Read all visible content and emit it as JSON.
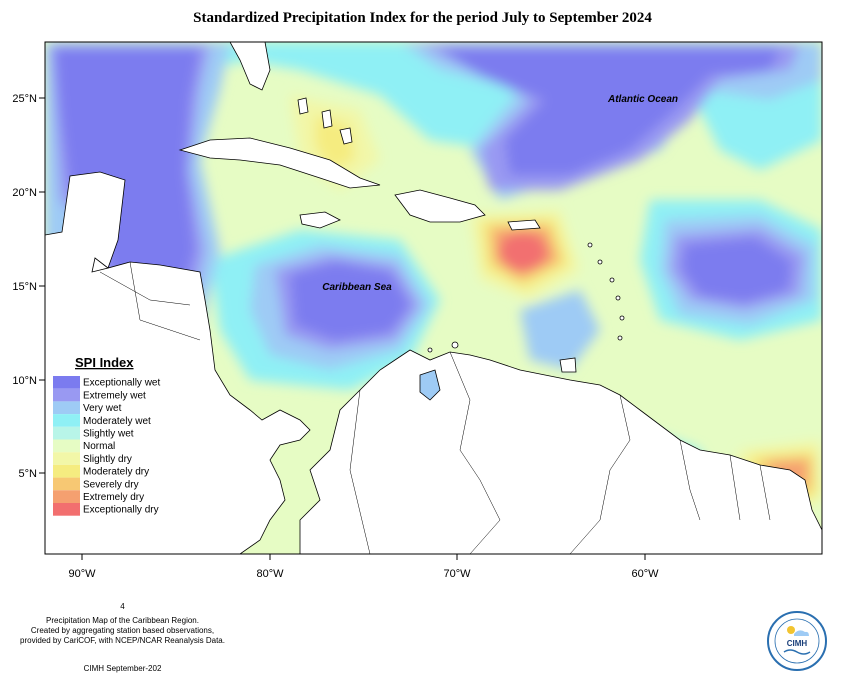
{
  "title": "Standardized Precipitation Index for the period July to September 2024",
  "map": {
    "lon_ticks": [
      "90°W",
      "80°W",
      "70°W",
      "60°W"
    ],
    "lat_ticks": [
      "25°N",
      "20°N",
      "15°N",
      "10°N",
      "5°N"
    ],
    "labels": {
      "atlantic": "Atlantic Ocean",
      "caribbean": "Caribbean Sea"
    }
  },
  "legend": {
    "title": "SPI Index",
    "items": [
      {
        "label": "Exceptionally wet",
        "color": "#7b7bef"
      },
      {
        "label": "Extremely wet",
        "color": "#9999f2"
      },
      {
        "label": "Very wet",
        "color": "#9ecbf5"
      },
      {
        "label": "Moderately wet",
        "color": "#8ff0f5"
      },
      {
        "label": "Slightly wet",
        "color": "#b8f5e8"
      },
      {
        "label": "Normal",
        "color": "#e6fcc4"
      },
      {
        "label": "Slightly dry",
        "color": "#f2f7a8"
      },
      {
        "label": "Moderately dry",
        "color": "#f5ec80"
      },
      {
        "label": "Severely dry",
        "color": "#f7c873"
      },
      {
        "label": "Extremely dry",
        "color": "#f5a070"
      },
      {
        "label": "Exceptionally dry",
        "color": "#f26f6f"
      }
    ]
  },
  "footer": {
    "page_marker": "4",
    "line1": "Precipitation Map of the Caribbean Region.",
    "line2": "Created by aggregating station based observations,",
    "line3": "provided by CariCOF, with NCEP/NCAR Reanalysis Data.",
    "credit": "CIMH September-202"
  },
  "logo": {
    "text": "CIMH"
  }
}
